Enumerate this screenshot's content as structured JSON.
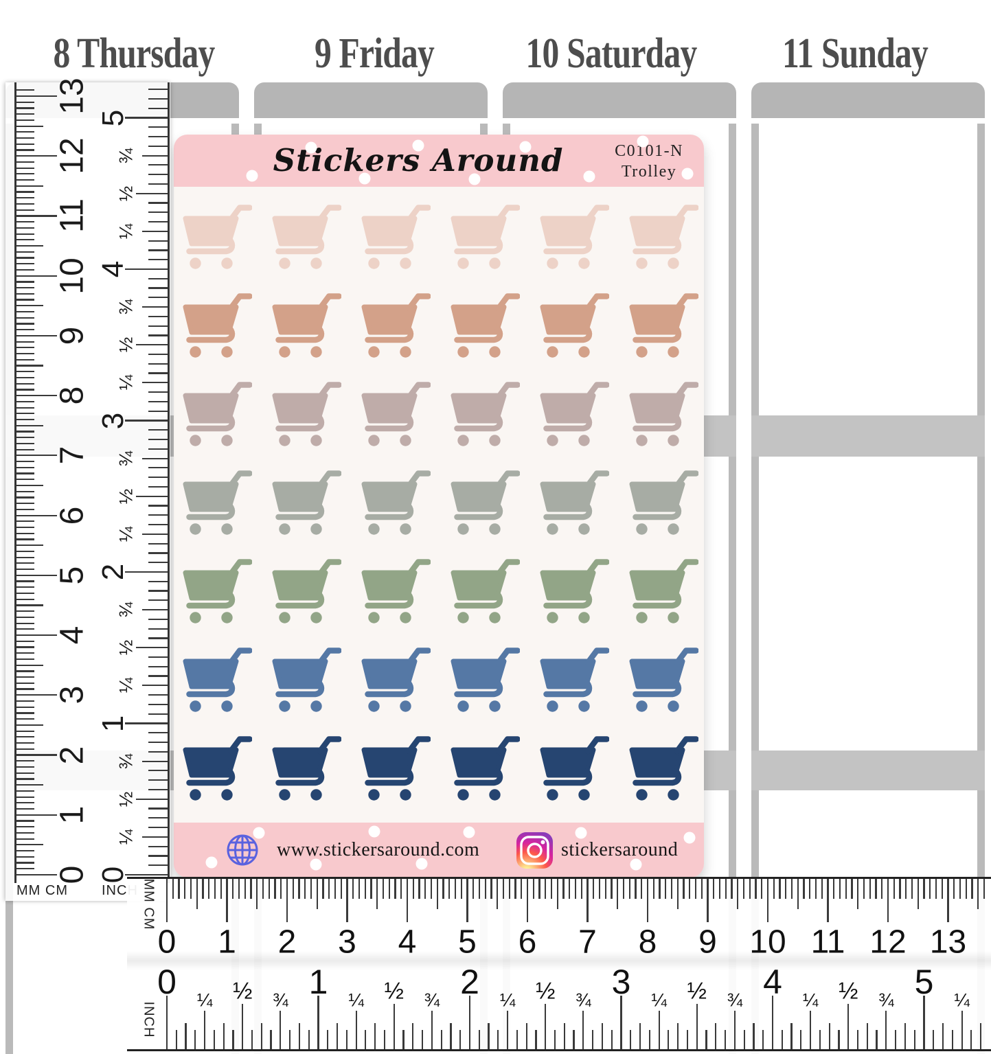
{
  "planner": {
    "day_labels": [
      "8 Thursday",
      "9 Friday",
      "10 Saturday",
      "11 Sunday"
    ],
    "label_color": "#4d4d4d",
    "header_gray": "#b5b5b5",
    "border_gray": "#bababa",
    "band_gray": "#c3c3c3"
  },
  "sheet": {
    "brand": "Stickers Around",
    "code": "C0101-N",
    "product": "Trolley",
    "website": "www.stickersaround.com",
    "instagram_handle": "stickersaround",
    "body_color": "#FAF6F3",
    "band_pink": "#F8C9CD",
    "sticker": {
      "name": "shopping-trolley",
      "rows": 7,
      "cols": 6,
      "row_colors": [
        {
          "name": "blush",
          "hex": "#EDD2C7"
        },
        {
          "name": "caramel",
          "hex": "#D3A189"
        },
        {
          "name": "mauve",
          "hex": "#BFACA9"
        },
        {
          "name": "gray",
          "hex": "#A7ACA4"
        },
        {
          "name": "sage",
          "hex": "#92A587"
        },
        {
          "name": "steel-blue",
          "hex": "#5578A5"
        },
        {
          "name": "navy",
          "hex": "#264571"
        }
      ]
    }
  },
  "rulers": {
    "cm_label": "MM CM",
    "inch_label": "INCH",
    "cm_numbers": [
      "0",
      "1",
      "2",
      "3",
      "4",
      "5",
      "6",
      "7",
      "8",
      "9",
      "10",
      "11",
      "12",
      "13"
    ],
    "inch_numbers": [
      "0",
      "1",
      "2",
      "3",
      "4",
      "5"
    ],
    "inch_fractions": [
      "¼",
      "½",
      "¾"
    ]
  }
}
